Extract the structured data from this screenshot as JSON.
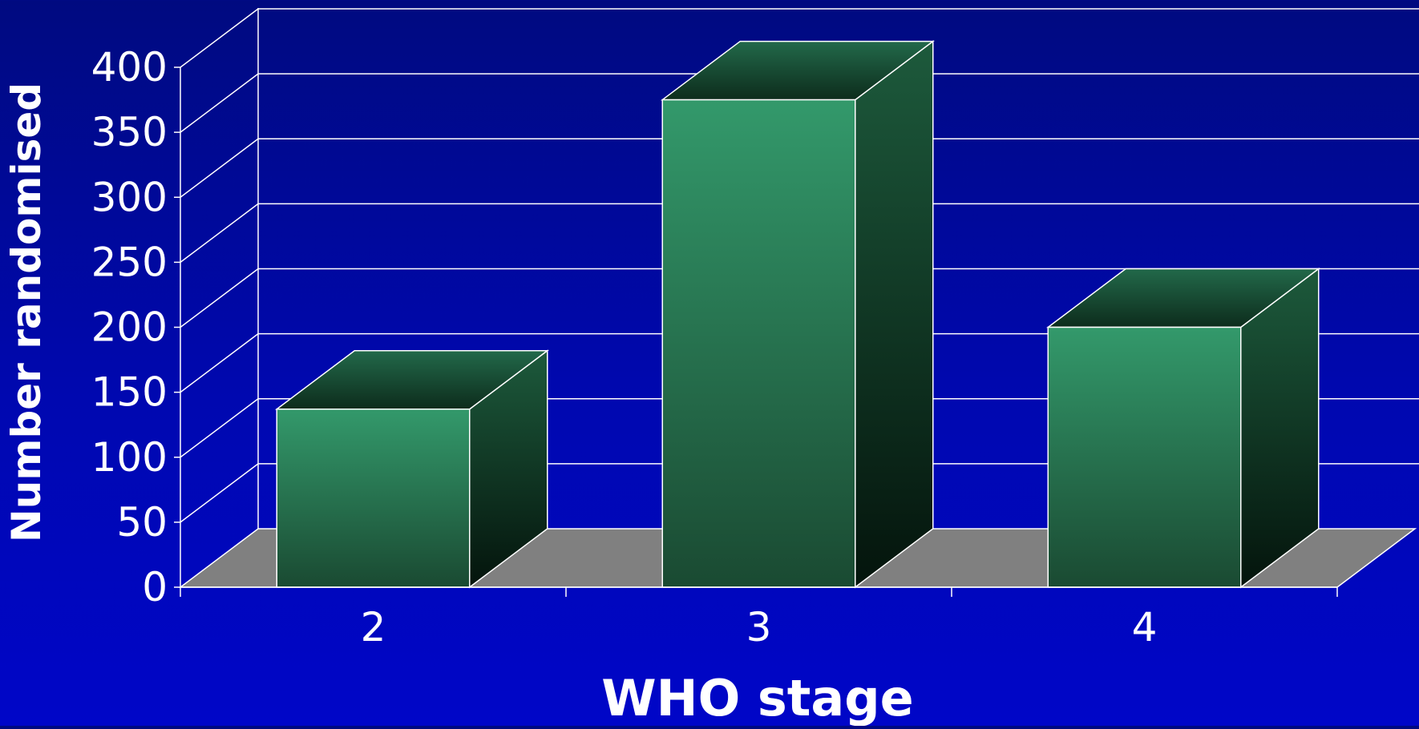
{
  "chart_data": {
    "type": "bar",
    "style": "3d-column",
    "title": "",
    "xlabel": "WHO stage",
    "ylabel": "Number randomised",
    "categories": [
      "2",
      "3",
      "4"
    ],
    "values": [
      137,
      375,
      200
    ],
    "ylim": [
      0,
      400
    ],
    "yticks": [
      "0",
      "50",
      "100",
      "150",
      "200",
      "250",
      "300",
      "350",
      "400"
    ],
    "grid": true,
    "legend": "none"
  },
  "colors": {
    "background": "#0008b0",
    "bar_front": "#2e9266",
    "bar_side": "#174a30",
    "bar_top": "#1c5a3a",
    "floor": "#808080",
    "grid": "#ffffff"
  }
}
